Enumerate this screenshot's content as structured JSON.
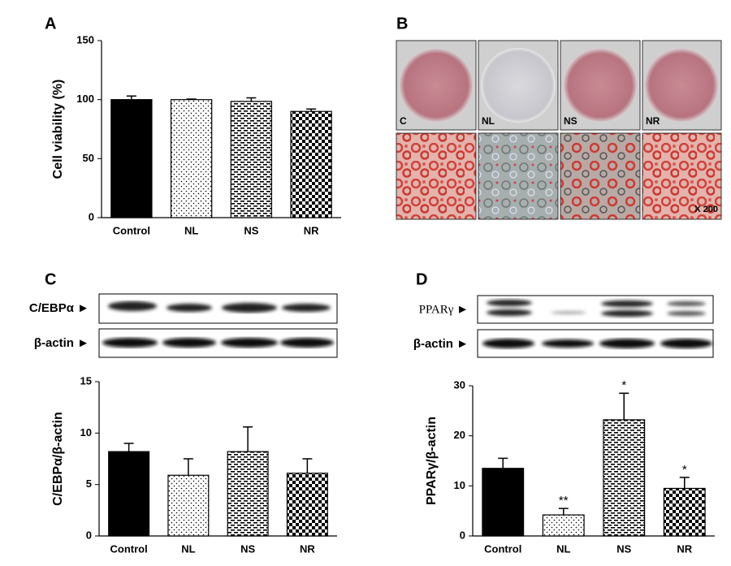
{
  "panel_labels": [
    "A",
    "B",
    "C",
    "D"
  ],
  "images": {
    "labels": [
      "C",
      "NL",
      "NS",
      "NR"
    ],
    "magnification": "X 200"
  },
  "blots": [
    {
      "labels": [
        "C/EBPα ►",
        "β-actin ►"
      ]
    },
    {
      "labels": [
        "PPARγ ►",
        "β-actin ►"
      ]
    }
  ],
  "chart_data": [
    {
      "type": "bar",
      "y_label": "Cell viability (%)",
      "categories": [
        "Control",
        "NL",
        "NS",
        "NR"
      ],
      "values": [
        100,
        100,
        98.5,
        90
      ],
      "errors": [
        3,
        0.5,
        3,
        2
      ],
      "patterns": [
        "solid",
        "dots",
        "dashes",
        "checker"
      ],
      "color": "#000000",
      "ylim": [
        0,
        150
      ],
      "yticks": [
        0,
        50,
        100,
        150
      ]
    },
    {
      "type": "bar",
      "y_label": "C/EBPα/β-actin",
      "categories": [
        "Control",
        "NL",
        "NS",
        "NR"
      ],
      "values": [
        8.2,
        5.9,
        8.2,
        6.1
      ],
      "errors": [
        0.8,
        1.6,
        2.4,
        1.4
      ],
      "patterns": [
        "solid",
        "dots",
        "dashes",
        "checker"
      ],
      "color": "#000000",
      "ylim": [
        0,
        15
      ],
      "yticks": [
        0,
        5,
        10,
        15
      ]
    },
    {
      "type": "bar",
      "y_label": "PPARγ/β-actin",
      "categories": [
        "Control",
        "NL",
        "NS",
        "NR"
      ],
      "values": [
        13.5,
        4.2,
        23.2,
        9.5
      ],
      "errors": [
        2,
        1.3,
        5.3,
        2.2
      ],
      "significance": [
        null,
        "**",
        "*",
        "*"
      ],
      "patterns": [
        "solid",
        "dots",
        "dashes",
        "checker"
      ],
      "color": "#000000",
      "ylim": [
        0,
        30
      ],
      "yticks": [
        0,
        10,
        20,
        30
      ]
    }
  ]
}
